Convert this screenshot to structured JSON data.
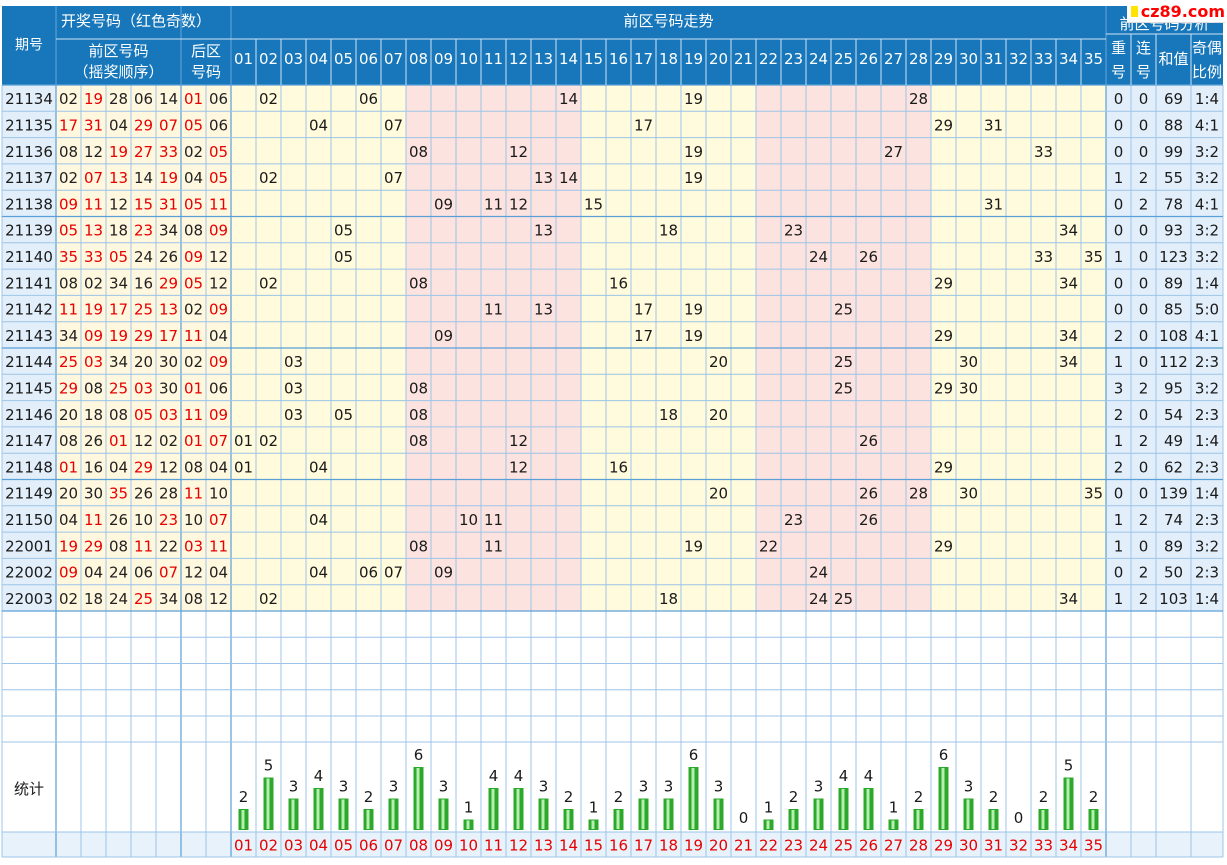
{
  "header": {
    "issue_label": "期号",
    "draw_label": "开奖号码（红色奇数）",
    "front_label": "前区号码",
    "front_sub": "（摇奖顺序）",
    "back_label_1": "后区",
    "back_label_2": "号码",
    "trend_label": "前区号码走势",
    "analysis_label": "前区号码分析",
    "col_repeat": [
      "重",
      "号"
    ],
    "col_consec": [
      "连",
      "号"
    ],
    "col_sum": "和值",
    "col_ratio": [
      "奇偶",
      "比例"
    ]
  },
  "logo": {
    "text": "cz89.com",
    "color": "#ff0000",
    "square_color": "#ffe400"
  },
  "numbers": [
    "01",
    "02",
    "03",
    "04",
    "05",
    "06",
    "07",
    "08",
    "09",
    "10",
    "11",
    "12",
    "13",
    "14",
    "15",
    "16",
    "17",
    "18",
    "19",
    "20",
    "21",
    "22",
    "23",
    "24",
    "25",
    "26",
    "27",
    "28",
    "29",
    "30",
    "31",
    "32",
    "33",
    "34",
    "35"
  ],
  "rows": [
    {
      "issue": "21134",
      "front": [
        "02",
        "19",
        "28",
        "06",
        "14"
      ],
      "back": [
        "01",
        "06"
      ],
      "repeat": "0",
      "consec": "0",
      "sum": "69",
      "ratio": "1:4"
    },
    {
      "issue": "21135",
      "front": [
        "17",
        "31",
        "04",
        "29",
        "07"
      ],
      "back": [
        "05",
        "06"
      ],
      "repeat": "0",
      "consec": "0",
      "sum": "88",
      "ratio": "4:1"
    },
    {
      "issue": "21136",
      "front": [
        "08",
        "12",
        "19",
        "27",
        "33"
      ],
      "back": [
        "02",
        "05"
      ],
      "repeat": "0",
      "consec": "0",
      "sum": "99",
      "ratio": "3:2"
    },
    {
      "issue": "21137",
      "front": [
        "02",
        "07",
        "13",
        "14",
        "19"
      ],
      "back": [
        "04",
        "05"
      ],
      "repeat": "1",
      "consec": "2",
      "sum": "55",
      "ratio": "3:2"
    },
    {
      "issue": "21138",
      "front": [
        "09",
        "11",
        "12",
        "15",
        "31"
      ],
      "back": [
        "05",
        "11"
      ],
      "repeat": "0",
      "consec": "2",
      "sum": "78",
      "ratio": "4:1"
    },
    {
      "issue": "21139",
      "front": [
        "05",
        "13",
        "18",
        "23",
        "34"
      ],
      "back": [
        "08",
        "09"
      ],
      "repeat": "0",
      "consec": "0",
      "sum": "93",
      "ratio": "3:2"
    },
    {
      "issue": "21140",
      "front": [
        "35",
        "33",
        "05",
        "24",
        "26"
      ],
      "back": [
        "09",
        "12"
      ],
      "repeat": "1",
      "consec": "0",
      "sum": "123",
      "ratio": "3:2"
    },
    {
      "issue": "21141",
      "front": [
        "08",
        "02",
        "34",
        "16",
        "29"
      ],
      "back": [
        "05",
        "12"
      ],
      "repeat": "0",
      "consec": "0",
      "sum": "89",
      "ratio": "1:4"
    },
    {
      "issue": "21142",
      "front": [
        "11",
        "19",
        "17",
        "25",
        "13"
      ],
      "back": [
        "02",
        "09"
      ],
      "repeat": "0",
      "consec": "0",
      "sum": "85",
      "ratio": "5:0"
    },
    {
      "issue": "21143",
      "front": [
        "34",
        "09",
        "19",
        "29",
        "17"
      ],
      "back": [
        "11",
        "04"
      ],
      "repeat": "2",
      "consec": "0",
      "sum": "108",
      "ratio": "4:1"
    },
    {
      "issue": "21144",
      "front": [
        "25",
        "03",
        "34",
        "20",
        "30"
      ],
      "back": [
        "02",
        "09"
      ],
      "repeat": "1",
      "consec": "0",
      "sum": "112",
      "ratio": "2:3"
    },
    {
      "issue": "21145",
      "front": [
        "29",
        "08",
        "25",
        "03",
        "30"
      ],
      "back": [
        "01",
        "06"
      ],
      "repeat": "3",
      "consec": "2",
      "sum": "95",
      "ratio": "3:2"
    },
    {
      "issue": "21146",
      "front": [
        "20",
        "18",
        "08",
        "05",
        "03"
      ],
      "back": [
        "11",
        "09"
      ],
      "repeat": "2",
      "consec": "0",
      "sum": "54",
      "ratio": "2:3"
    },
    {
      "issue": "21147",
      "front": [
        "08",
        "26",
        "01",
        "12",
        "02"
      ],
      "back": [
        "01",
        "07"
      ],
      "repeat": "1",
      "consec": "2",
      "sum": "49",
      "ratio": "1:4"
    },
    {
      "issue": "21148",
      "front": [
        "01",
        "16",
        "04",
        "29",
        "12"
      ],
      "back": [
        "08",
        "04"
      ],
      "repeat": "2",
      "consec": "0",
      "sum": "62",
      "ratio": "2:3"
    },
    {
      "issue": "21149",
      "front": [
        "20",
        "30",
        "35",
        "26",
        "28"
      ],
      "back": [
        "11",
        "10"
      ],
      "repeat": "0",
      "consec": "0",
      "sum": "139",
      "ratio": "1:4"
    },
    {
      "issue": "21150",
      "front": [
        "04",
        "11",
        "26",
        "10",
        "23"
      ],
      "back": [
        "10",
        "07"
      ],
      "repeat": "1",
      "consec": "2",
      "sum": "74",
      "ratio": "2:3"
    },
    {
      "issue": "22001",
      "front": [
        "19",
        "29",
        "08",
        "11",
        "22"
      ],
      "back": [
        "03",
        "11"
      ],
      "repeat": "1",
      "consec": "0",
      "sum": "89",
      "ratio": "3:2"
    },
    {
      "issue": "22002",
      "front": [
        "09",
        "04",
        "24",
        "06",
        "07"
      ],
      "back": [
        "12",
        "04"
      ],
      "repeat": "0",
      "consec": "2",
      "sum": "50",
      "ratio": "2:3"
    },
    {
      "issue": "22003",
      "front": [
        "02",
        "18",
        "24",
        "25",
        "34"
      ],
      "back": [
        "08",
        "12"
      ],
      "repeat": "1",
      "consec": "2",
      "sum": "103",
      "ratio": "1:4"
    }
  ],
  "stats_label": "统计",
  "chart_data": {
    "type": "bar",
    "title": "",
    "categories": [
      "01",
      "02",
      "03",
      "04",
      "05",
      "06",
      "07",
      "08",
      "09",
      "10",
      "11",
      "12",
      "13",
      "14",
      "15",
      "16",
      "17",
      "18",
      "19",
      "20",
      "21",
      "22",
      "23",
      "24",
      "25",
      "26",
      "27",
      "28",
      "29",
      "30",
      "31",
      "32",
      "33",
      "34",
      "35"
    ],
    "values": [
      2,
      5,
      3,
      4,
      3,
      2,
      3,
      6,
      3,
      1,
      4,
      4,
      3,
      2,
      1,
      2,
      3,
      3,
      6,
      3,
      0,
      1,
      2,
      3,
      4,
      4,
      1,
      2,
      6,
      3,
      2,
      0,
      2,
      5,
      2
    ],
    "xlabel": "",
    "ylabel": "",
    "ylim": [
      0,
      6
    ],
    "grid": true,
    "legend": "none"
  },
  "colors": {
    "header_bg": "#1777ba",
    "header_text": "#ffffff",
    "grid_line": "#9cc4e8",
    "issue_bg": "#e2effb",
    "odd_text": "#e60000",
    "even_text": "#222222",
    "front_bg": "#fff7de",
    "back_bg": "#fff7de",
    "zone_a": "#fffbdc",
    "zone_b": "#fde3e0",
    "bar_green": "#2ca82c",
    "bar_light": "#b6efb0"
  }
}
